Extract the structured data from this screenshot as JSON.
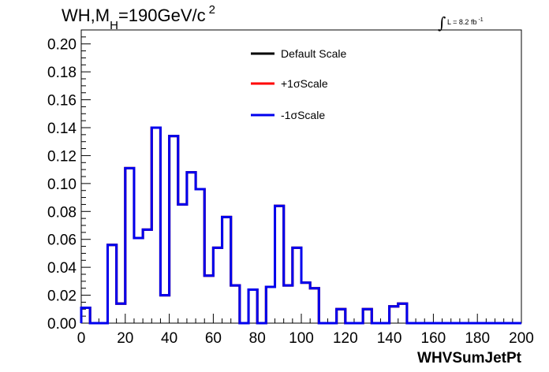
{
  "chart_data": {
    "type": "line",
    "style": "step-histogram",
    "title": {
      "prefix": "WH,M",
      "subscript": "H",
      "value": "=190GeV/c",
      "superscript": "2"
    },
    "luminosity": {
      "text": "L = 8.2 fb",
      "superscript": "-1"
    },
    "xlabel": "WHVSumJetPt",
    "ylabel": "",
    "xlim": [
      0,
      200
    ],
    "ylim": [
      0,
      0.21
    ],
    "x_ticks": [
      "0",
      "20",
      "40",
      "60",
      "80",
      "100",
      "120",
      "140",
      "160",
      "180",
      "200"
    ],
    "y_ticks": [
      "0.00",
      "0.02",
      "0.04",
      "0.06",
      "0.08",
      "0.10",
      "0.12",
      "0.14",
      "0.16",
      "0.18",
      "0.20"
    ],
    "grid": false,
    "legend_position": "top-center",
    "bin_edges": [
      0,
      4,
      8,
      12,
      16,
      20,
      24,
      28,
      32,
      36,
      40,
      44,
      48,
      52,
      56,
      60,
      64,
      68,
      72,
      76,
      80,
      84,
      88,
      92,
      96,
      100,
      104,
      108,
      112,
      116,
      120,
      124,
      128,
      132,
      136,
      140,
      144,
      148,
      152,
      156,
      160,
      164,
      168,
      172,
      176,
      180,
      184,
      188,
      192,
      196,
      200
    ],
    "series": [
      {
        "name": "Default Scale",
        "color": "#000000",
        "values": [
          0.011,
          0.0,
          0.0,
          0.056,
          0.014,
          0.111,
          0.061,
          0.067,
          0.14,
          0.02,
          0.134,
          0.085,
          0.108,
          0.096,
          0.034,
          0.054,
          0.076,
          0.027,
          0.0,
          0.024,
          0.0,
          0.026,
          0.084,
          0.027,
          0.054,
          0.029,
          0.025,
          0.0,
          0.0,
          0.01,
          0.0,
          0.0,
          0.01,
          0.0,
          0.0,
          0.012,
          0.014,
          0.0,
          0.0,
          0.0,
          0.0,
          0.0,
          0.0,
          0.0,
          0.0,
          0.0,
          0.0,
          0.0,
          0.0,
          0.0
        ]
      },
      {
        "name": "+1σScale",
        "color": "#ff0000",
        "values": [
          0.011,
          0.0,
          0.0,
          0.056,
          0.014,
          0.111,
          0.061,
          0.067,
          0.14,
          0.02,
          0.134,
          0.085,
          0.108,
          0.096,
          0.034,
          0.054,
          0.076,
          0.027,
          0.0,
          0.024,
          0.0,
          0.026,
          0.084,
          0.027,
          0.054,
          0.029,
          0.025,
          0.0,
          0.0,
          0.01,
          0.0,
          0.0,
          0.01,
          0.0,
          0.0,
          0.012,
          0.014,
          0.0,
          0.0,
          0.0,
          0.0,
          0.0,
          0.0,
          0.0,
          0.0,
          0.0,
          0.0,
          0.0,
          0.0,
          0.0
        ]
      },
      {
        "name": "-1σScale",
        "color": "#0000ee",
        "values": [
          0.011,
          0.0,
          0.0,
          0.056,
          0.014,
          0.111,
          0.061,
          0.067,
          0.14,
          0.02,
          0.134,
          0.085,
          0.108,
          0.096,
          0.034,
          0.054,
          0.076,
          0.027,
          0.0,
          0.024,
          0.0,
          0.026,
          0.084,
          0.027,
          0.054,
          0.029,
          0.025,
          0.0,
          0.0,
          0.01,
          0.0,
          0.0,
          0.01,
          0.0,
          0.0,
          0.012,
          0.014,
          0.0,
          0.0,
          0.0,
          0.0,
          0.0,
          0.0,
          0.0,
          0.0,
          0.0,
          0.0,
          0.0,
          0.0,
          0.0
        ]
      }
    ]
  }
}
